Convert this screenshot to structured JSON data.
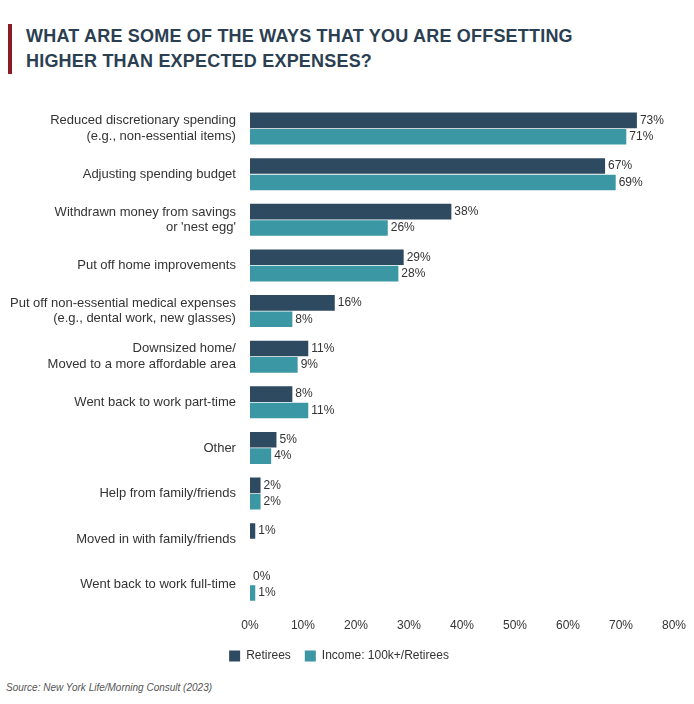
{
  "chart_data": {
    "type": "bar",
    "title": "WHAT ARE SOME OF THE WAYS THAT YOU ARE OFFSETTING HIGHER THAN EXPECTED EXPENSES?",
    "source": "Source: New York Life/Morning Consult (2023)",
    "orientation": "horizontal",
    "categories": [
      "Reduced discretionary spending\n(e.g., non-essential items)",
      "Adjusting spending budget",
      "Withdrawn money from savings\nor 'nest egg'",
      "Put off home improvements",
      "Put off non-essential medical expenses\n(e.g., dental work, new glasses)",
      "Downsized home/\nMoved to a more affordable area",
      "Went back to work part-time",
      "Other",
      "Help from family/friends",
      "Moved in with family/friends",
      "Went back to work full-time"
    ],
    "series": [
      {
        "name": "Retirees",
        "color": "#2e4a60",
        "values": [
          73,
          67,
          38,
          29,
          16,
          11,
          8,
          5,
          2,
          1,
          0
        ],
        "value_labels": [
          "73%",
          "67%",
          "38%",
          "29%",
          "16%",
          "11%",
          "8%",
          "5%",
          "2%",
          "1%",
          "0%"
        ]
      },
      {
        "name": "Income: 100k+/Retirees",
        "color": "#3b97a3",
        "values": [
          71,
          69,
          26,
          28,
          8,
          9,
          11,
          4,
          2,
          null,
          1
        ],
        "value_labels": [
          "71%",
          "69%",
          "26%",
          "28%",
          "8%",
          "9%",
          "11%",
          "4%",
          "2%",
          null,
          "1%"
        ]
      }
    ],
    "xlim": [
      0,
      80
    ],
    "xticks": [
      {
        "value": 0,
        "label": "0%"
      },
      {
        "value": 10,
        "label": "10%"
      },
      {
        "value": 20,
        "label": "20%"
      },
      {
        "value": 30,
        "label": "30%"
      },
      {
        "value": 40,
        "label": "40%"
      },
      {
        "value": 50,
        "label": "50%"
      },
      {
        "value": 60,
        "label": "60%"
      },
      {
        "value": 70,
        "label": "70%"
      },
      {
        "value": 80,
        "label": "80%"
      }
    ],
    "grid": false,
    "legend": "bottom",
    "data_labels": true
  }
}
